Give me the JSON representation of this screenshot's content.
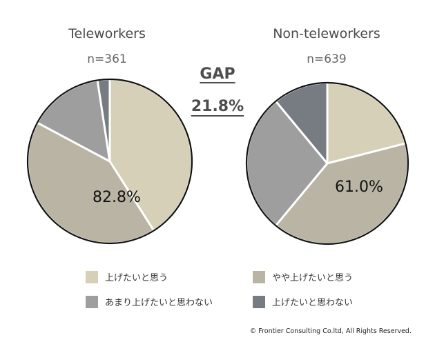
{
  "chart_data": [
    {
      "type": "pie",
      "title": "Teleworkers",
      "subtitle": "n=361",
      "slice_label": "82.8%",
      "slices": [
        {
          "name": "上げたいと思う",
          "value": 41.0,
          "color": "#d6d0b8"
        },
        {
          "name": "やや上げたいと思う",
          "value": 41.8,
          "color": "#b9b4a3"
        },
        {
          "name": "あまり上げたいと思わない",
          "value": 14.8,
          "color": "#9e9e9e"
        },
        {
          "name": "上げたいと思わない",
          "value": 2.4,
          "color": "#767c82"
        }
      ]
    },
    {
      "type": "pie",
      "title": "Non-teleworkers",
      "subtitle": "n=639",
      "slice_label": "61.0%",
      "slices": [
        {
          "name": "上げたいと思う",
          "value": 21.0,
          "color": "#d6d0b8"
        },
        {
          "name": "やや上げたいと思う",
          "value": 40.0,
          "color": "#b9b4a3"
        },
        {
          "name": "あまり上げたいと思わない",
          "value": 28.0,
          "color": "#9e9e9e"
        },
        {
          "name": "上げたいと思わない",
          "value": 11.0,
          "color": "#767c82"
        }
      ]
    }
  ],
  "gap": {
    "label": "GAP",
    "value": "21.8%"
  },
  "legend": [
    {
      "label": "上げたいと思う",
      "color": "#d6d0b8"
    },
    {
      "label": "やや上げたいと思う",
      "color": "#b9b4a3"
    },
    {
      "label": "あまり上げたいと思わない",
      "color": "#9e9e9e"
    },
    {
      "label": "上げたいと思わない",
      "color": "#767c82"
    }
  ],
  "copyright": "© Frontier Consulting Co.ltd, All Rights Reserved."
}
